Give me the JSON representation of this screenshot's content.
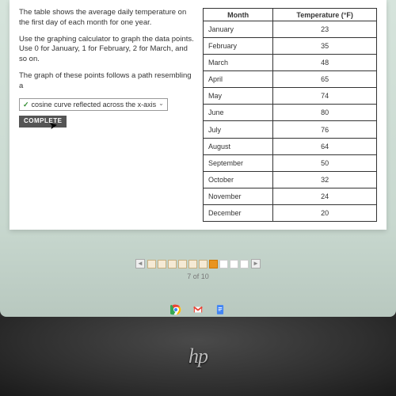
{
  "question": {
    "para1": "The table shows the average daily temperature on the first day of each month for one year.",
    "para2": "Use the graphing calculator to graph the data points. Use 0 for January, 1 for February, 2 for March, and so on.",
    "para3": "The graph of these points follows a path resembling a",
    "selected_answer": "cosine curve reflected across the x-axis",
    "complete_label": "COMPLETE"
  },
  "table": {
    "headers": {
      "col1": "Month",
      "col2": "Temperature (°F)"
    },
    "rows": [
      {
        "month": "January",
        "temp": "23"
      },
      {
        "month": "February",
        "temp": "35"
      },
      {
        "month": "March",
        "temp": "48"
      },
      {
        "month": "April",
        "temp": "65"
      },
      {
        "month": "May",
        "temp": "74"
      },
      {
        "month": "June",
        "temp": "80"
      },
      {
        "month": "July",
        "temp": "76"
      },
      {
        "month": "August",
        "temp": "64"
      },
      {
        "month": "September",
        "temp": "50"
      },
      {
        "month": "October",
        "temp": "32"
      },
      {
        "month": "November",
        "temp": "24"
      },
      {
        "month": "December",
        "temp": "20"
      }
    ]
  },
  "pager": {
    "total": 10,
    "current": 7,
    "label": "7 of 10"
  },
  "taskbar": {
    "icons": [
      {
        "name": "chrome-icon"
      },
      {
        "name": "gmail-icon"
      },
      {
        "name": "docs-icon"
      }
    ]
  },
  "device": {
    "brand": "hp"
  },
  "colors": {
    "screen_bg": "#c8d8cf",
    "card_bg": "#ffffff",
    "complete_btn": "#555555",
    "page_current": "#e8941f",
    "page_done": "#f5ead5",
    "check": "#2e8b2e"
  }
}
